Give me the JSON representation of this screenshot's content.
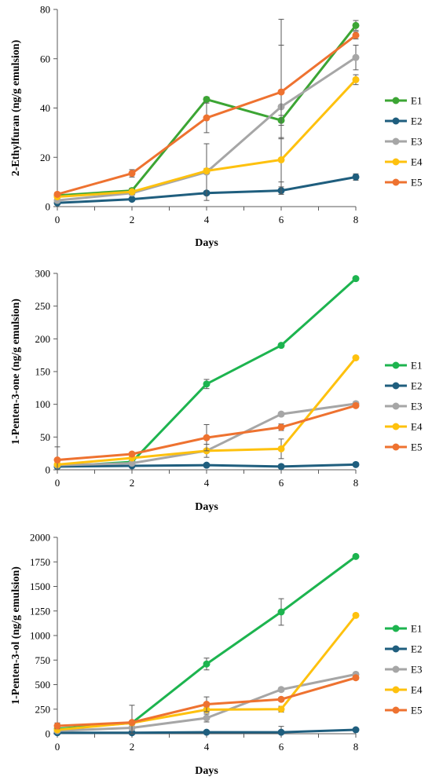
{
  "chart_data": [
    {
      "type": "line",
      "title": "",
      "xlabel": "Days",
      "ylabel": "2-Ethylfuran (ng/g emulsion)",
      "x": [
        0,
        2,
        4,
        6,
        8
      ],
      "xlim": [
        0,
        8
      ],
      "ylim": [
        0,
        80
      ],
      "yticks": [
        0,
        20,
        40,
        60,
        80
      ],
      "grid": false,
      "legend": "right",
      "series": [
        {
          "name": "E1",
          "color": "#3CA534",
          "values": [
            4.5,
            6.5,
            43.5,
            35,
            73.5
          ],
          "err": [
            0.5,
            1,
            1,
            2,
            2
          ]
        },
        {
          "name": "E2",
          "color": "#1F5E7E",
          "values": [
            1.5,
            3,
            5.5,
            6.5,
            12
          ],
          "err": [
            0.3,
            0.5,
            0.8,
            1.5,
            1.3
          ]
        },
        {
          "name": "E3",
          "color": "#A6A6A6",
          "values": [
            2.5,
            5.5,
            14,
            40.5,
            60.5
          ],
          "err": [
            0.5,
            1,
            11.5,
            35.5,
            5
          ]
        },
        {
          "name": "E4",
          "color": "#FEC10E",
          "values": [
            4,
            6,
            14.5,
            19,
            51.5
          ],
          "err": [
            0.5,
            1,
            1,
            9,
            2
          ]
        },
        {
          "name": "E5",
          "color": "#EE7230",
          "values": [
            5,
            13.5,
            36,
            46.5,
            69.5
          ],
          "err": [
            0.5,
            1.5,
            6,
            19,
            1.5
          ]
        }
      ]
    },
    {
      "type": "line",
      "title": "",
      "xlabel": "Days",
      "ylabel": "1-Penten-3-one (ng/g emulsion)",
      "x": [
        0,
        2,
        4,
        6,
        8
      ],
      "xlim": [
        0,
        8
      ],
      "ylim": [
        0,
        300
      ],
      "yticks": [
        0,
        50,
        100,
        150,
        200,
        250,
        300
      ],
      "grid": false,
      "legend": "right",
      "series": [
        {
          "name": "E1",
          "color": "#1DB44F",
          "values": [
            5,
            12,
            131,
            190,
            292
          ],
          "err": [
            2,
            2,
            7,
            3,
            3
          ]
        },
        {
          "name": "E2",
          "color": "#1F5E7E",
          "values": [
            5,
            6,
            7,
            5,
            8
          ],
          "err": [
            1,
            1,
            1,
            1,
            1
          ]
        },
        {
          "name": "E3",
          "color": "#A6A6A6",
          "values": [
            7,
            10,
            29,
            85,
            101
          ],
          "err": [
            2,
            3,
            10,
            3,
            3
          ]
        },
        {
          "name": "E4",
          "color": "#FEC10E",
          "values": [
            8,
            18,
            29,
            32,
            171
          ],
          "err": [
            2,
            2,
            2,
            15,
            3
          ]
        },
        {
          "name": "E5",
          "color": "#EE7230",
          "values": [
            15,
            24,
            49,
            65,
            98
          ],
          "err": [
            20,
            3,
            20,
            5,
            3
          ]
        }
      ]
    },
    {
      "type": "line",
      "title": "",
      "xlabel": "Days",
      "ylabel": "1-Penten-3-ol (ng/g emulsion)",
      "x": [
        0,
        2,
        4,
        6,
        8
      ],
      "xlim": [
        0,
        8
      ],
      "ylim": [
        0,
        2000
      ],
      "yticks": [
        0,
        250,
        500,
        750,
        1000,
        1250,
        1500,
        1750,
        2000
      ],
      "grid": false,
      "legend": "right",
      "series": [
        {
          "name": "E1",
          "color": "#1DB44F",
          "values": [
            50,
            110,
            710,
            1240,
            1805
          ],
          "err": [
            10,
            15,
            60,
            135,
            15
          ]
        },
        {
          "name": "E2",
          "color": "#1F5E7E",
          "values": [
            10,
            10,
            15,
            15,
            40
          ],
          "err": [
            5,
            5,
            5,
            60,
            10
          ]
        },
        {
          "name": "E3",
          "color": "#A6A6A6",
          "values": [
            30,
            60,
            160,
            450,
            605
          ],
          "err": [
            10,
            10,
            40,
            20,
            20
          ]
        },
        {
          "name": "E4",
          "color": "#FEC10E",
          "values": [
            40,
            110,
            245,
            250,
            1205
          ],
          "err": [
            10,
            10,
            30,
            30,
            20
          ]
        },
        {
          "name": "E5",
          "color": "#EE7230",
          "values": [
            80,
            115,
            300,
            350,
            570
          ],
          "err": [
            30,
            175,
            75,
            20,
            20
          ]
        }
      ]
    }
  ]
}
